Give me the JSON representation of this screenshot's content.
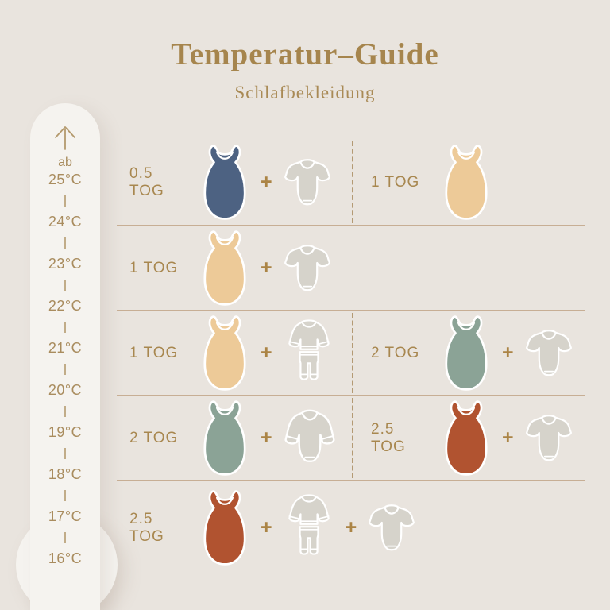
{
  "title": "Temperatur–Guide",
  "subtitle": "Schlafbekleidung",
  "plus_sign": "+",
  "colors": {
    "background": "#e9e4de",
    "thermometer_fill": "#f5f3ef",
    "gold_title": "#a6854d",
    "gold_text": "#a98c5e",
    "rule_line": "#c7ae94",
    "dashed_divider": "#b49a74",
    "bag_blue": "#4d6282",
    "bag_cream": "#edca98",
    "bag_green": "#8ba396",
    "bag_rust": "#b15330",
    "clothing_gray": "#d6d3cb"
  },
  "thermometer": {
    "arrow_icon": "arrow-up",
    "prefix": "ab",
    "labels": [
      "25°C",
      "24°C",
      "23°C",
      "22°C",
      "21°C",
      "20°C",
      "19°C",
      "18°C",
      "17°C",
      "16°C"
    ]
  },
  "rows": [
    {
      "left": {
        "tog": "0.5 TOG",
        "bag": "blue",
        "items": [
          "bodysuit-short"
        ]
      },
      "right": {
        "tog": "1 TOG",
        "bag": "cream",
        "items": []
      }
    },
    {
      "left": {
        "tog": "1 TOG",
        "bag": "cream",
        "items": [
          "bodysuit-short"
        ]
      },
      "right": null
    },
    {
      "left": {
        "tog": "1 TOG",
        "bag": "cream",
        "items": [
          "pajamas"
        ]
      },
      "right": {
        "tog": "2 TOG",
        "bag": "green",
        "items": [
          "bodysuit-short"
        ]
      }
    },
    {
      "left": {
        "tog": "2 TOG",
        "bag": "green",
        "items": [
          "bodysuit-long"
        ]
      },
      "right": {
        "tog": "2.5 TOG",
        "bag": "rust",
        "items": [
          "bodysuit-short"
        ]
      }
    },
    {
      "left": {
        "tog": "2.5 TOG",
        "bag": "rust",
        "items": [
          "pajamas",
          "bodysuit-short"
        ]
      },
      "right": null
    }
  ]
}
